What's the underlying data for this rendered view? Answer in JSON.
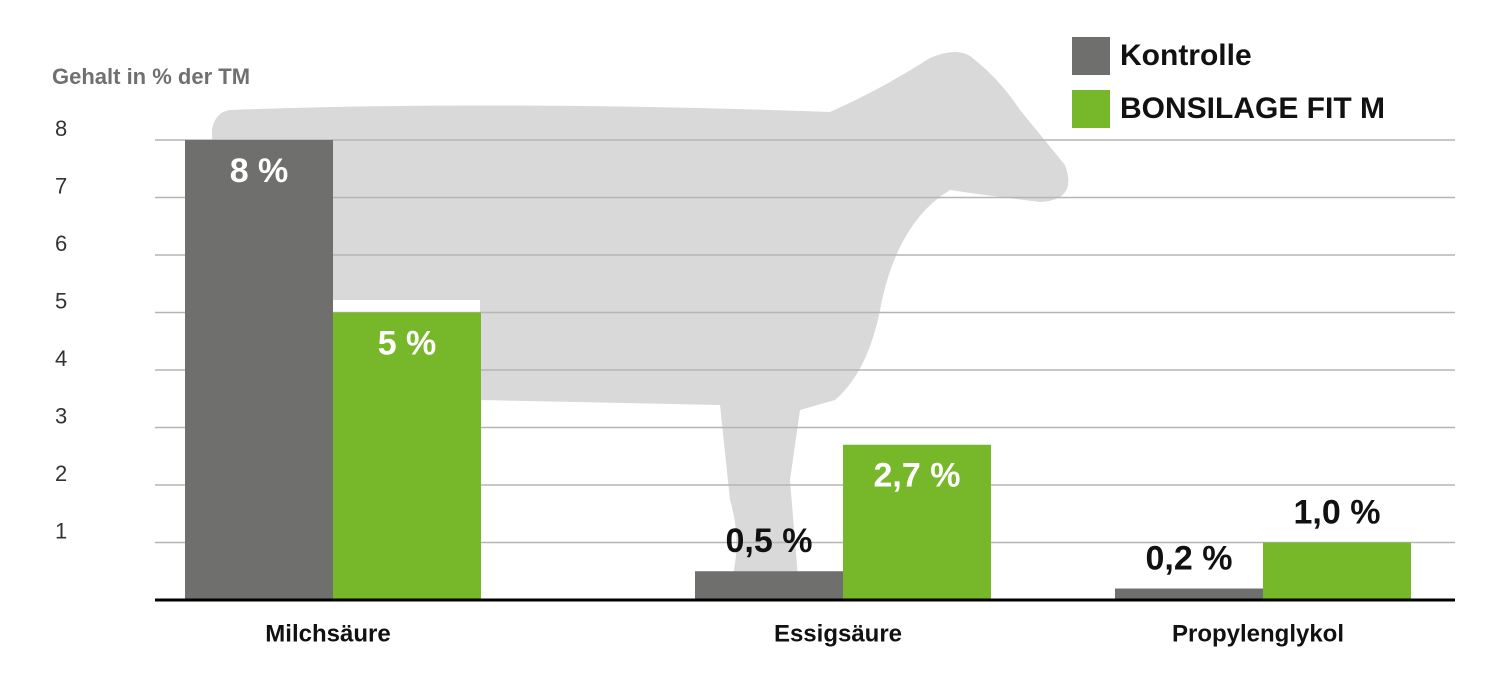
{
  "chart_data": {
    "type": "bar",
    "y_axis_label": "Gehalt in % der TM",
    "categories": [
      "Milchsäure",
      "Essigsäure",
      "Propylenglykol"
    ],
    "series": [
      {
        "name": "Kontrolle",
        "color": "#6f6f6e",
        "values": [
          8,
          0.5,
          0.2
        ],
        "value_labels": [
          "8 %",
          "0,5 %",
          "0,2 %"
        ]
      },
      {
        "name": "BONSILAGE FIT M",
        "color": "#77b82a",
        "values": [
          5,
          2.7,
          1.0
        ],
        "value_labels": [
          "5 %",
          "2,7 %",
          "1,0 %"
        ]
      }
    ],
    "ylim": [
      0,
      8
    ],
    "yticks": [
      1,
      2,
      3,
      4,
      5,
      6,
      7,
      8
    ],
    "grid": true,
    "legend": "top-right"
  }
}
